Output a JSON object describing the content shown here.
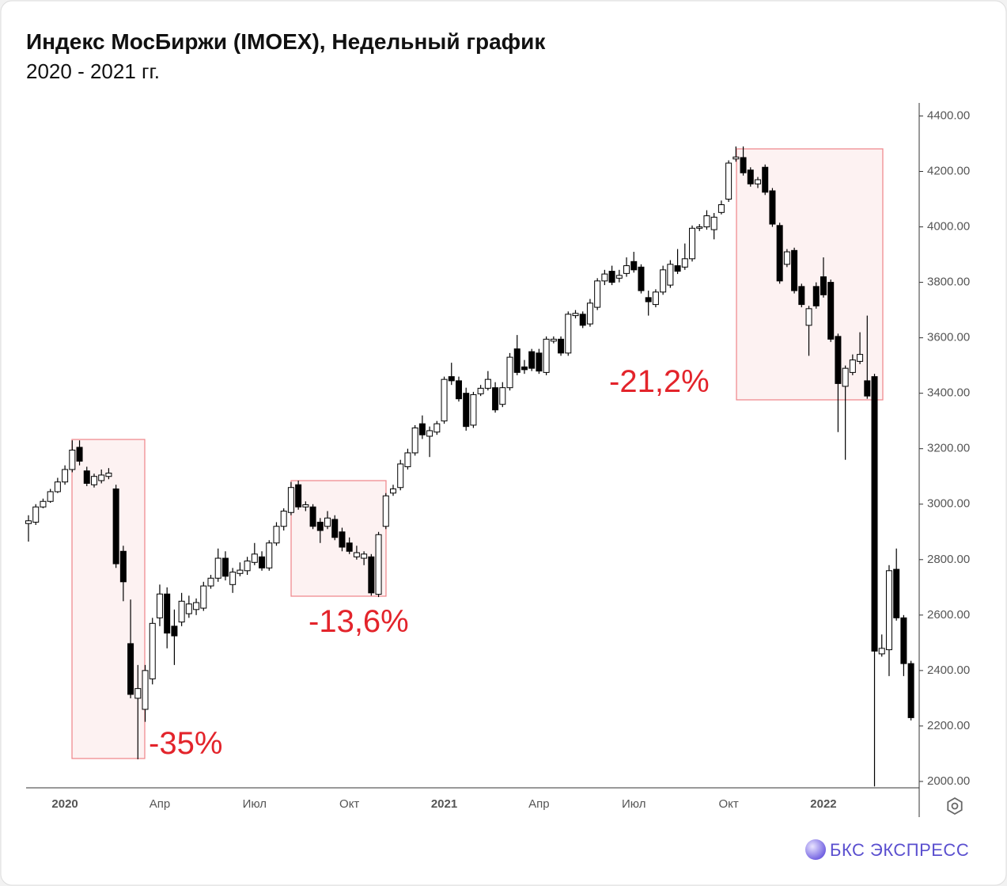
{
  "chart_data": {
    "type": "candlestick",
    "title": "Индекс МосБиржи (IMOEX), Недельный график",
    "subtitle": "2020 - 2021 гг.",
    "brand": "БКС ЭКСПРЕСС",
    "up_color": "#ffffff",
    "down_color": "#000000",
    "box_color": "#e8545a",
    "annotation_color": "#e3242b",
    "annotations": [
      {
        "text": "-35%"
      },
      {
        "text": "-13,6%"
      },
      {
        "text": "-21,2%"
      }
    ],
    "categories": [
      null,
      null,
      null,
      null,
      null,
      "2020",
      null,
      null,
      null,
      null,
      null,
      null,
      null,
      null,
      null,
      null,
      null,
      null,
      "Апр",
      null,
      null,
      null,
      null,
      null,
      null,
      null,
      null,
      null,
      null,
      null,
      null,
      "Июл",
      null,
      null,
      null,
      null,
      null,
      null,
      null,
      null,
      null,
      null,
      null,
      null,
      "Окт",
      null,
      null,
      null,
      null,
      null,
      null,
      null,
      null,
      null,
      null,
      null,
      null,
      "2021",
      null,
      null,
      null,
      null,
      null,
      null,
      null,
      null,
      null,
      null,
      null,
      null,
      "Апр",
      null,
      null,
      null,
      null,
      null,
      null,
      null,
      null,
      null,
      null,
      null,
      null,
      "Июл",
      null,
      null,
      null,
      null,
      null,
      null,
      null,
      null,
      null,
      null,
      null,
      null,
      "Окт",
      null,
      null,
      null,
      null,
      null,
      null,
      null,
      null,
      null,
      null,
      null,
      null,
      "2022",
      null,
      null,
      null,
      null,
      null,
      null,
      null,
      null,
      null,
      null,
      null,
      null
    ],
    "series": [
      {
        "open": [
          2930,
          2935,
          2990,
          3010,
          3045,
          3080,
          3125,
          3205,
          3120,
          3070,
          3085,
          3100,
          3055,
          2830,
          2497,
          2300,
          2260,
          2370,
          2590,
          2676,
          2560,
          2575,
          2605,
          2620,
          2625,
          2705,
          2733,
          2805,
          2710,
          2750,
          2760,
          2790,
          2810,
          2770,
          2860,
          2920,
          2970,
          3070,
          2990,
          2990,
          2935,
          2920,
          2945,
          2900,
          2860,
          2810,
          2805,
          2810,
          2675,
          2920,
          3040,
          3060,
          3135,
          3185,
          3290,
          3245,
          3260,
          3300,
          3460,
          3445,
          3400,
          3285,
          3398,
          3418,
          3420,
          3360,
          3420,
          3560,
          3495,
          3550,
          3545,
          3475,
          3588,
          3595,
          3545,
          3680,
          3685,
          3650,
          3710,
          3805,
          3840,
          3815,
          3832,
          3875,
          3855,
          3745,
          3720,
          3765,
          3790,
          3860,
          3855,
          3885,
          3995,
          4000,
          3990,
          4052,
          4100,
          4245,
          4250,
          4205,
          4155,
          4215,
          4130,
          4005,
          3865,
          3915,
          3785,
          3645,
          3785,
          3820,
          3800,
          3605,
          3425,
          3475,
          3515,
          3445,
          3460,
          2460,
          2475,
          2765,
          2590,
          2425
        ],
        "high": [
          2960,
          3000,
          3020,
          3055,
          3095,
          3140,
          3230,
          3230,
          3135,
          3110,
          3125,
          3130,
          3070,
          2850,
          2656,
          2420,
          2420,
          2590,
          2710,
          2700,
          2620,
          2680,
          2670,
          2660,
          2720,
          2745,
          2840,
          2830,
          2770,
          2790,
          2810,
          2860,
          2830,
          2870,
          2935,
          2985,
          3080,
          3085,
          3010,
          3000,
          2950,
          2975,
          2960,
          2915,
          2880,
          2850,
          2830,
          2820,
          2900,
          3040,
          3070,
          3160,
          3200,
          3285,
          3320,
          3280,
          3300,
          3460,
          3510,
          3460,
          3420,
          3405,
          3430,
          3480,
          3440,
          3440,
          3545,
          3610,
          3520,
          3560,
          3560,
          3605,
          3605,
          3605,
          3695,
          3700,
          3695,
          3740,
          3815,
          3845,
          3860,
          3845,
          3890,
          3910,
          3865,
          3770,
          3775,
          3860,
          3880,
          3920,
          3940,
          4005,
          4010,
          4060,
          4050,
          4095,
          4240,
          4290,
          4290,
          4215,
          4180,
          4225,
          4140,
          4015,
          3920,
          3925,
          3795,
          3715,
          3800,
          3890,
          3810,
          3615,
          3500,
          3540,
          3620,
          3680,
          3470,
          2530,
          2780,
          2840,
          2600,
          2435
        ],
        "low": [
          2865,
          2925,
          2985,
          3005,
          3040,
          3070,
          3115,
          3140,
          3065,
          3060,
          3075,
          3090,
          2770,
          2650,
          2300,
          2080,
          2215,
          2350,
          2560,
          2480,
          2420,
          2560,
          2590,
          2600,
          2615,
          2695,
          2720,
          2725,
          2680,
          2740,
          2745,
          2780,
          2760,
          2760,
          2850,
          2905,
          2960,
          2980,
          2975,
          2910,
          2860,
          2910,
          2870,
          2830,
          2820,
          2800,
          2780,
          2670,
          2665,
          2910,
          3030,
          3050,
          3125,
          3175,
          3235,
          3170,
          3250,
          3290,
          3430,
          3370,
          3265,
          3275,
          3390,
          3410,
          3330,
          3350,
          3410,
          3465,
          3470,
          3480,
          3470,
          3465,
          3580,
          3535,
          3535,
          3670,
          3635,
          3640,
          3700,
          3790,
          3790,
          3800,
          3820,
          3835,
          3760,
          3680,
          3710,
          3755,
          3780,
          3830,
          3845,
          3875,
          3985,
          3990,
          3955,
          4045,
          4090,
          4235,
          4185,
          4145,
          4140,
          4115,
          4000,
          3795,
          3855,
          3760,
          3710,
          3535,
          3705,
          3745,
          3585,
          3260,
          3160,
          3465,
          3505,
          3380,
          1982,
          2450,
          2380,
          2580,
          2380,
          2220
        ],
        "close": [
          2940,
          2990,
          3010,
          3045,
          3080,
          3125,
          3195,
          3155,
          3075,
          3100,
          3105,
          3112,
          2785,
          2720,
          2314,
          2335,
          2400,
          2570,
          2676,
          2535,
          2525,
          2650,
          2640,
          2645,
          2705,
          2733,
          2805,
          2740,
          2755,
          2762,
          2795,
          2820,
          2770,
          2860,
          2920,
          2975,
          3060,
          2990,
          2998,
          2920,
          2905,
          2950,
          2880,
          2845,
          2830,
          2825,
          2820,
          2680,
          2890,
          3030,
          3055,
          3145,
          3185,
          3275,
          3250,
          3265,
          3290,
          3450,
          3445,
          3380,
          3280,
          3395,
          3418,
          3450,
          3340,
          3420,
          3530,
          3475,
          3485,
          3490,
          3480,
          3595,
          3595,
          3545,
          3685,
          3688,
          3645,
          3725,
          3805,
          3830,
          3800,
          3825,
          3860,
          3845,
          3770,
          3730,
          3765,
          3845,
          3865,
          3840,
          3885,
          3995,
          4000,
          4040,
          4035,
          4080,
          4230,
          4252,
          4195,
          4155,
          4170,
          4125,
          4010,
          3805,
          3910,
          3770,
          3720,
          3705,
          3715,
          3755,
          3595,
          3435,
          3490,
          3520,
          3540,
          3390,
          2470,
          2480,
          2760,
          2590,
          2425,
          2230
        ]
      }
    ],
    "ylim": [
      1977,
      4447
    ],
    "yticks": [
      {
        "value": 2000,
        "label": "2000.00"
      },
      {
        "value": 2200,
        "label": "2200.00"
      },
      {
        "value": 2400,
        "label": "2400.00"
      },
      {
        "value": 2600,
        "label": "2600.00"
      },
      {
        "value": 2800,
        "label": "2800.00"
      },
      {
        "value": 3000,
        "label": "3000.00"
      },
      {
        "value": 3200,
        "label": "3200.00"
      },
      {
        "value": 3400,
        "label": "3400.00"
      },
      {
        "value": 3600,
        "label": "3600.00"
      },
      {
        "value": 3800,
        "label": "3800.00"
      },
      {
        "value": 4000,
        "label": "4000.00"
      },
      {
        "value": 4200,
        "label": "4200.00"
      },
      {
        "value": 4400,
        "label": "4400.00"
      }
    ]
  }
}
